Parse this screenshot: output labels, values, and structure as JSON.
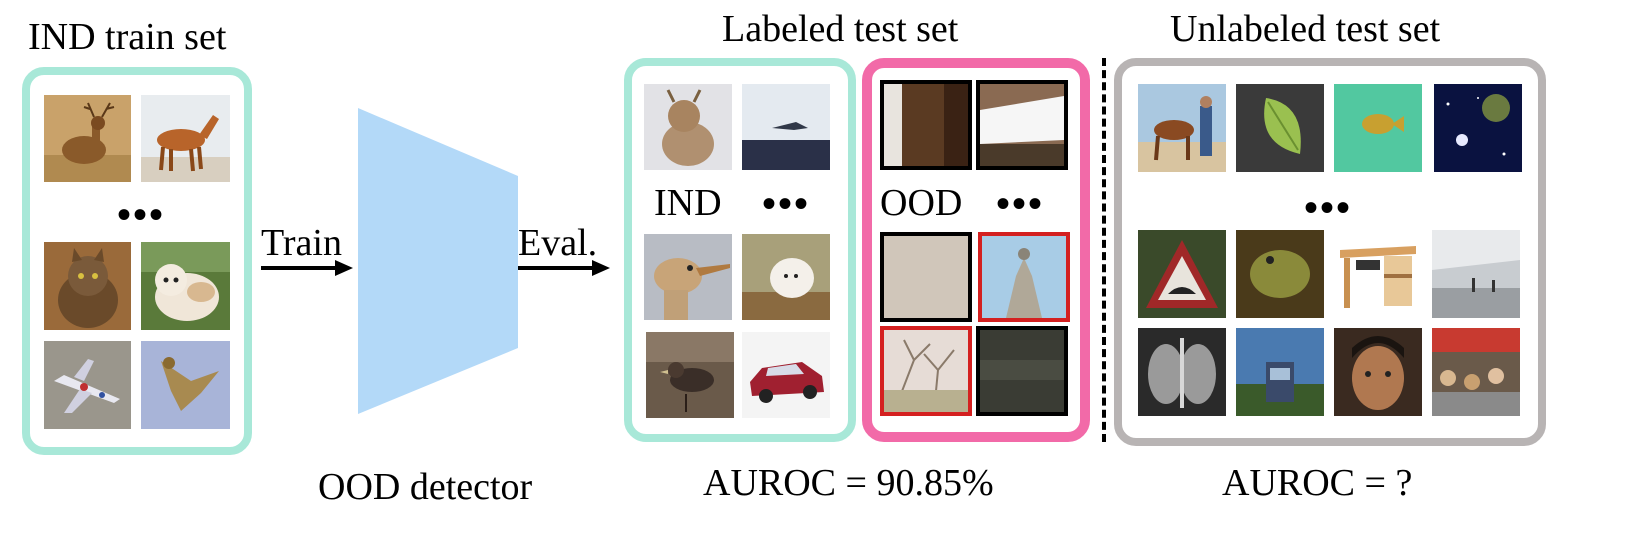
{
  "train_panel": {
    "title": "IND train set",
    "ellipsis": "•••",
    "border_color": "#a8e8d8"
  },
  "arrows": {
    "train": "Train",
    "eval": "Eval."
  },
  "detector": {
    "caption": "OOD detector",
    "color": "#b3d9f8"
  },
  "labeled_panel": {
    "title": "Labeled test set",
    "ind_label": "IND",
    "ood_label": "OOD",
    "ellipsis": "•••",
    "ind_border_color": "#a8e8d8",
    "ood_border_color": "#f26aa8",
    "metric": "AUROC = 90.85%"
  },
  "unlabeled_panel": {
    "title": "Unlabeled test set",
    "ellipsis": "•••",
    "border_color": "#b8b4b4",
    "metric": "AUROC = ?"
  },
  "highlight_color": "#d42020"
}
